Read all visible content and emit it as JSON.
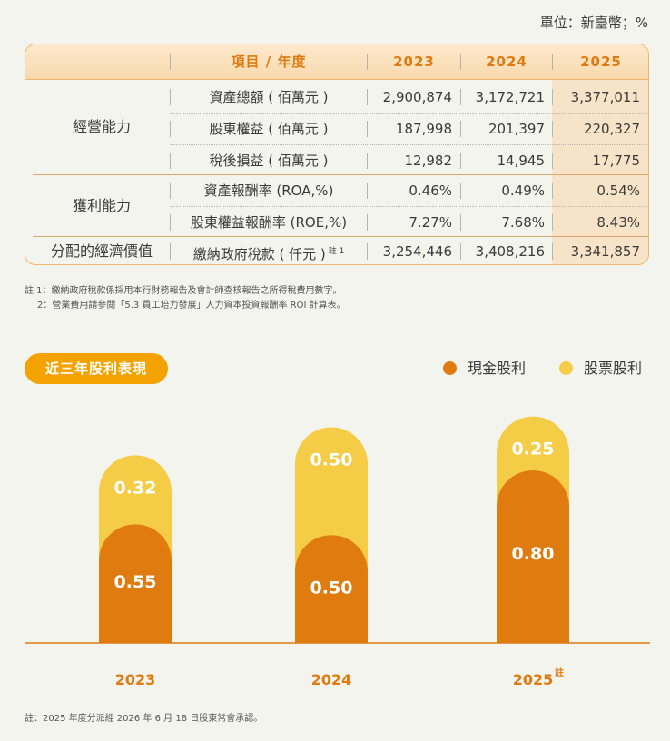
{
  "unit": "單位：新臺幣；%",
  "table": {
    "header": {
      "item": "項目 / 年度",
      "years": [
        "2023",
        "2024",
        "2025"
      ]
    },
    "groups": [
      {
        "category": "經營能力",
        "rows": [
          {
            "item": "資產總額 ( 佰萬元 )",
            "values": [
              "2,900,874",
              "3,172,721",
              "3,377,011"
            ]
          },
          {
            "item": "股東權益 ( 佰萬元 )",
            "values": [
              "187,998",
              "201,397",
              "220,327"
            ]
          },
          {
            "item": "稅後損益 ( 佰萬元 )",
            "values": [
              "12,982",
              "14,945",
              "17,775"
            ]
          }
        ]
      },
      {
        "category": "獲利能力",
        "rows": [
          {
            "item": "資產報酬率 (ROA,%)",
            "values": [
              "0.46%",
              "0.49%",
              "0.54%"
            ]
          },
          {
            "item": "股東權益報酬率 (ROE,%)",
            "values": [
              "7.27%",
              "7.68%",
              "8.43%"
            ]
          }
        ]
      },
      {
        "category": "分配的經濟價值",
        "rows": [
          {
            "item": "繳納政府稅款 ( 仟元 )",
            "note": "註 1",
            "values": [
              "3,254,446",
              "3,408,216",
              "3,341,857"
            ]
          }
        ]
      }
    ]
  },
  "notes": [
    "註 1：繳納政府稅款係採用本行財務報告及會計師查核報告之所得稅費用數字。",
    "2：營業費用請參閱「5.3 員工培力發展」人力資本投資報酬率 ROI 計算表。"
  ],
  "chart_title": "近三年股利表現",
  "colors": {
    "cash": "#e07b10",
    "stock": "#f4cc45",
    "accent": "#f3a200",
    "axis": "#e07b10"
  },
  "chart_data": {
    "type": "bar",
    "stacked": true,
    "categories": [
      "2023",
      "2024",
      "2025"
    ],
    "category_notes": [
      "",
      "",
      "註"
    ],
    "series": [
      {
        "name": "現金股利",
        "values": [
          0.55,
          0.5,
          0.8
        ],
        "labels": [
          "0.55",
          "0.50",
          "0.80"
        ]
      },
      {
        "name": "股票股利",
        "values": [
          0.32,
          0.5,
          0.25
        ],
        "labels": [
          "0.32",
          "0.50",
          "0.25"
        ]
      }
    ],
    "ylim": [
      0,
      1.05
    ],
    "grid": false,
    "legend_position": "top-right"
  },
  "footnote": "註：2025 年度分派經 2026 年 6 月 18 日股東常會承認。"
}
